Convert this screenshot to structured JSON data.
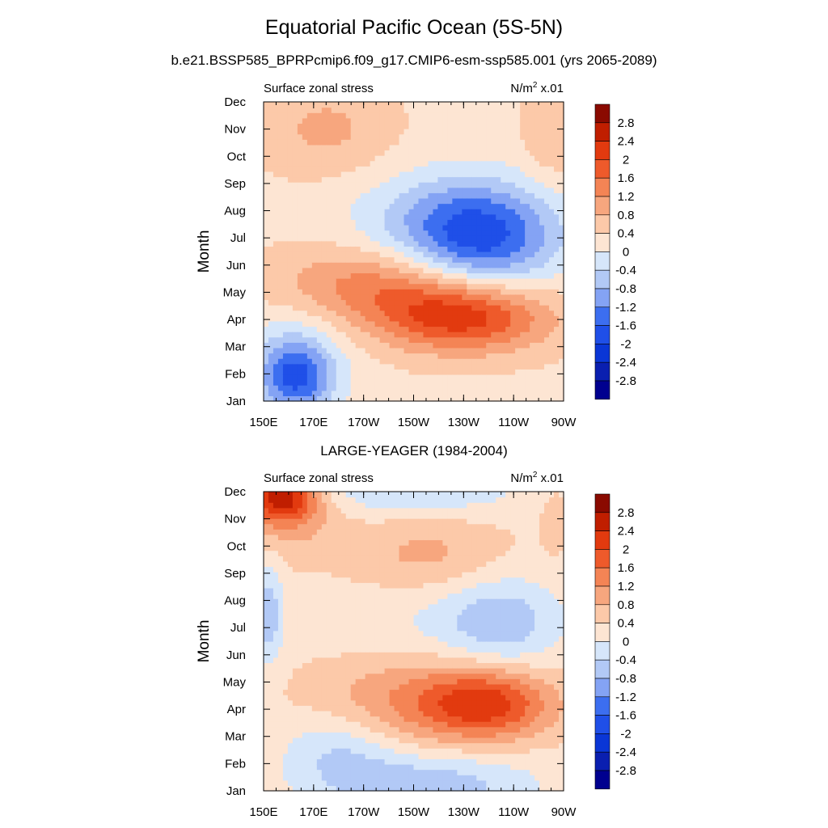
{
  "title": "Equatorial Pacific Ocean (5S-5N)",
  "subtitle": "b.e21.BSSP585_BPRPcmip6.f09_g17.CMIP6-esm-ssp585.001 (yrs 2065-2089)",
  "colors": {
    "levels": [
      {
        "upper": -2.8,
        "color": "#00008f"
      },
      {
        "upper": -2.4,
        "color": "#0a1fb0"
      },
      {
        "upper": -2.0,
        "color": "#0a36d6"
      },
      {
        "upper": -1.6,
        "color": "#1f4fe8"
      },
      {
        "upper": -1.2,
        "color": "#3c6ef0"
      },
      {
        "upper": -0.8,
        "color": "#84a3f4"
      },
      {
        "upper": -0.4,
        "color": "#b2c9f6"
      },
      {
        "upper": 0.0,
        "color": "#d6e6fa"
      },
      {
        "upper": 0.4,
        "color": "#fde5d3"
      },
      {
        "upper": 0.8,
        "color": "#fcc9a9"
      },
      {
        "upper": 1.2,
        "color": "#f7a67e"
      },
      {
        "upper": 1.6,
        "color": "#f48455"
      },
      {
        "upper": 2.0,
        "color": "#ee5a2b"
      },
      {
        "upper": 2.4,
        "color": "#e23a0f"
      },
      {
        "upper": 2.8,
        "color": "#c01e00"
      },
      {
        "upper": 99,
        "color": "#8a0a00"
      }
    ]
  },
  "chart_data": [
    {
      "type": "heatmap",
      "panel_title": "",
      "left_label": "Surface zonal stress",
      "units_text": "N/m",
      "units_sup": "2",
      "units_suffix": " x.01",
      "ylabel": "Month",
      "x_ticks": [
        "150E",
        "170E",
        "170W",
        "150W",
        "130W",
        "110W",
        "90W"
      ],
      "y_ticks": [
        "Jan",
        "Feb",
        "Mar",
        "Apr",
        "May",
        "Jun",
        "Jul",
        "Aug",
        "Sep",
        "Oct",
        "Nov",
        "Dec"
      ],
      "xlim_deg_east": [
        150,
        270
      ],
      "ylim_month": [
        1,
        12
      ],
      "colorbar_labels": [
        "2.8",
        "2.4",
        "2",
        "1.6",
        "1.2",
        "0.8",
        "0.4",
        "0",
        "-0.4",
        "-0.8",
        "-1.2",
        "-1.6",
        "-2",
        "-2.4",
        "-2.8"
      ],
      "features": [
        {
          "x": 163,
          "y": 1.9,
          "sx": 10,
          "sy": 0.9,
          "amp": -1.6
        },
        {
          "x": 162,
          "y": 2.6,
          "sx": 16,
          "sy": 1.6,
          "amp": -0.6
        },
        {
          "x": 230,
          "y": 4.1,
          "sx": 24,
          "sy": 0.9,
          "amp": 1.9
        },
        {
          "x": 195,
          "y": 5.3,
          "sx": 30,
          "sy": 1.0,
          "amp": 1.1
        },
        {
          "x": 237,
          "y": 7.0,
          "sx": 22,
          "sy": 1.4,
          "amp": -2.0
        },
        {
          "x": 215,
          "y": 7.8,
          "sx": 26,
          "sy": 1.2,
          "amp": -0.5
        },
        {
          "x": 175,
          "y": 11.0,
          "sx": 18,
          "sy": 1.2,
          "amp": 0.6
        },
        {
          "x": 265,
          "y": 10.8,
          "sx": 8,
          "sy": 1.2,
          "amp": 0.5
        }
      ]
    },
    {
      "type": "heatmap",
      "panel_title": "LARGE-YEAGER (1984-2004)",
      "left_label": "Surface zonal stress",
      "units_text": "N/m",
      "units_sup": "2",
      "units_suffix": " x.01",
      "ylabel": "Month",
      "x_ticks": [
        "150E",
        "170E",
        "170W",
        "150W",
        "130W",
        "110W",
        "90W"
      ],
      "y_ticks": [
        "Jan",
        "Feb",
        "Mar",
        "Apr",
        "May",
        "Jun",
        "Jul",
        "Aug",
        "Sep",
        "Oct",
        "Nov",
        "Dec"
      ],
      "xlim_deg_east": [
        150,
        270
      ],
      "ylim_month": [
        1,
        12
      ],
      "colorbar_labels": [
        "2.8",
        "2.4",
        "2",
        "1.6",
        "1.2",
        "0.8",
        "0.4",
        "0",
        "-0.4",
        "-0.8",
        "-1.2",
        "-1.6",
        "-2",
        "-2.4",
        "-2.8"
      ],
      "features": [
        {
          "x": 157,
          "y": 11.8,
          "sx": 10,
          "sy": 0.6,
          "amp": 2.1
        },
        {
          "x": 160,
          "y": 11.0,
          "sx": 14,
          "sy": 1.0,
          "amp": 0.6
        },
        {
          "x": 240,
          "y": 4.2,
          "sx": 18,
          "sy": 0.9,
          "amp": 1.6
        },
        {
          "x": 210,
          "y": 4.3,
          "sx": 28,
          "sy": 1.2,
          "amp": 0.9
        },
        {
          "x": 215,
          "y": 9.7,
          "sx": 22,
          "sy": 1.0,
          "amp": 0.6
        },
        {
          "x": 245,
          "y": 7.2,
          "sx": 16,
          "sy": 1.2,
          "amp": -0.9
        },
        {
          "x": 215,
          "y": 7.2,
          "sx": 30,
          "sy": 1.1,
          "amp": -0.3
        },
        {
          "x": 215,
          "y": 1.2,
          "sx": 30,
          "sy": 0.9,
          "amp": -1.0
        },
        {
          "x": 180,
          "y": 2.6,
          "sx": 16,
          "sy": 1.0,
          "amp": -0.7
        },
        {
          "x": 210,
          "y": 12.0,
          "sx": 30,
          "sy": 0.6,
          "amp": -0.7
        },
        {
          "x": 152,
          "y": 7.5,
          "sx": 4,
          "sy": 1.3,
          "amp": -1.0
        },
        {
          "x": 267,
          "y": 11.0,
          "sx": 4,
          "sy": 0.8,
          "amp": 0.4
        }
      ]
    }
  ]
}
